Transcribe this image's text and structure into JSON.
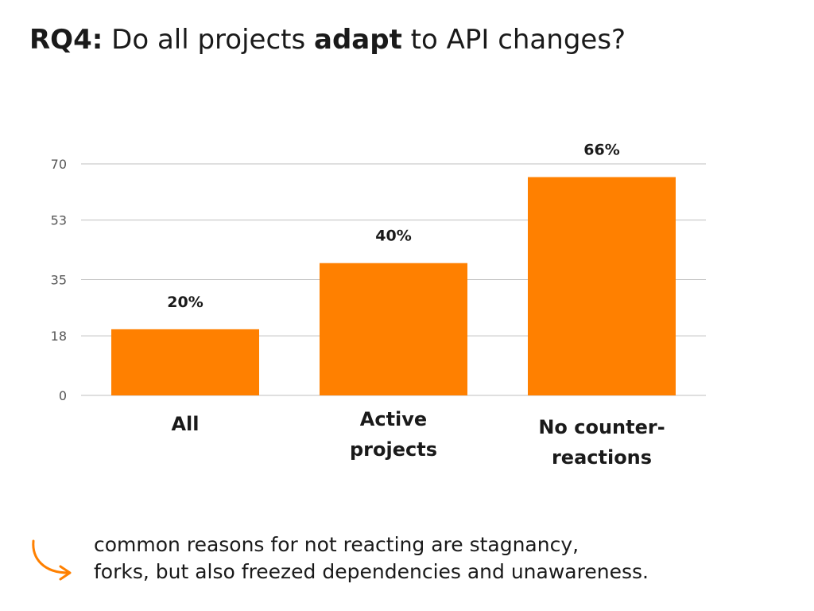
{
  "title": {
    "prefix": "RQ4:",
    "part1": " Do all projects ",
    "emphasis": "adapt",
    "part2": " to API changes?"
  },
  "colors": {
    "bar": "#ff8000",
    "grid": "#bfbfbf",
    "arrow": "#ff8000"
  },
  "chart_data": {
    "type": "bar",
    "categories": [
      "All",
      "Active projects",
      "No counter-reactions"
    ],
    "category_lines": [
      [
        "All"
      ],
      [
        "Active",
        "projects"
      ],
      [
        "No counter-",
        "reactions"
      ]
    ],
    "values": [
      20,
      40,
      66
    ],
    "value_labels": [
      "20%",
      "40%",
      "66%"
    ],
    "yticks": [
      "0",
      "18",
      "35",
      "53",
      "70"
    ],
    "ylim": [
      0,
      70
    ],
    "grid": true,
    "title": "",
    "xlabel": "",
    "ylabel": ""
  },
  "note": {
    "line1": "common reasons for not reacting are stagnancy,",
    "line2": "forks, but also freezed dependencies and unawareness."
  },
  "icons": {
    "note_marker": "curved-arrow-icon"
  }
}
